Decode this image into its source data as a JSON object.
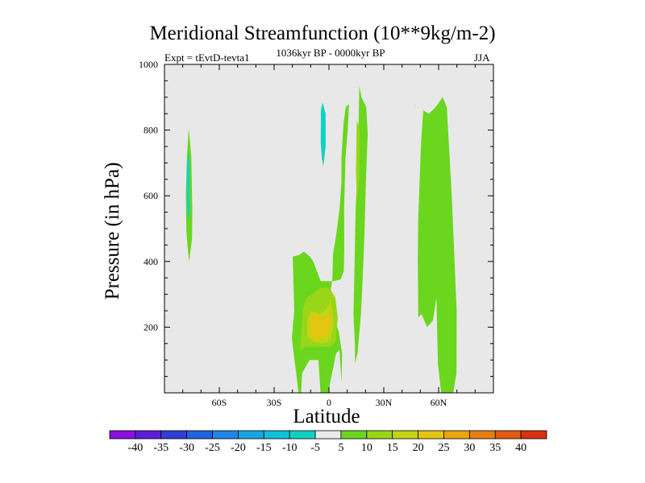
{
  "chart_data": {
    "type": "contour",
    "title": "Meridional Streamfunction (10**9kg/m-2)",
    "experiment_label": "Expt = tEvtD-tevta1",
    "period_label": "1036kyr BP - 0000kyr BP",
    "season_label": "JJA",
    "xlabel": "Latitude",
    "ylabel": "Pressure (in hPa)",
    "xlim": [
      -90,
      90
    ],
    "ylim": [
      1000,
      0
    ],
    "x_ticks": [
      {
        "value": -60,
        "label": "60S"
      },
      {
        "value": -30,
        "label": "30S"
      },
      {
        "value": 0,
        "label": "0"
      },
      {
        "value": 30,
        "label": "30N"
      },
      {
        "value": 60,
        "label": "60N"
      }
    ],
    "y_ticks": [
      {
        "value": 200,
        "label": "200"
      },
      {
        "value": 400,
        "label": "400"
      },
      {
        "value": 600,
        "label": "600"
      },
      {
        "value": 800,
        "label": "800"
      },
      {
        "value": 1000,
        "label": "1000"
      }
    ],
    "colorbar": {
      "labels": [
        "-40",
        "-35",
        "-30",
        "-25",
        "-20",
        "-15",
        "-10",
        "-5",
        "5",
        "10",
        "15",
        "20",
        "25",
        "30",
        "35",
        "40"
      ],
      "colors": [
        "#8a0fe0",
        "#5a1ed8",
        "#2d3fd4",
        "#1f63e0",
        "#1f86e6",
        "#17a3e2",
        "#12bfd8",
        "#10d2c4",
        "#ebebeb",
        "#6ad61e",
        "#98d617",
        "#c2d414",
        "#e4c511",
        "#e9a512",
        "#e47f12",
        "#e05a12",
        "#d8310f"
      ]
    },
    "fields": [
      {
        "level": "5",
        "lat": [
          -76.5,
          -74.9,
          -74.8,
          -75.3,
          -76.7,
          -77.7,
          -78.3,
          -78.0,
          -77.1
        ],
        "p": [
          400,
          470,
          560,
          720,
          805,
          720,
          600,
          490,
          430
        ]
      },
      {
        "level": "-5",
        "lat": [
          -77.0,
          -76.2,
          -76.2,
          -77.0,
          -77.7,
          -77.7
        ],
        "p": [
          520,
          560,
          690,
          740,
          690,
          570
        ]
      },
      {
        "level": "-5",
        "lat": [
          -3.1,
          -1.8,
          -1.8,
          -3.5,
          -4.4,
          -4.5,
          -3.8
        ],
        "p": [
          690,
          750,
          850,
          885,
          860,
          760,
          710
        ]
      },
      {
        "level": "5",
        "lat": [
          -16.6,
          -15.2,
          -14.7,
          -10.6,
          -5.8,
          -4.6,
          -0.4,
          3.9,
          5.8,
          6.9,
          7.2,
          5.2,
          1.7,
          0.2,
          1.9,
          2.2,
          4.2,
          5.8,
          6.8,
          6.9,
          8.0,
          9.2,
          11.0,
          10.3,
          9.1,
          8.3,
          8.4,
          8.1,
          6.3,
          2.7,
          -4.5,
          -8.6,
          -10.4,
          -13.8,
          -16.1,
          -19.8,
          -19.0,
          -20.3
        ],
        "p": [
          0,
          0,
          60,
          100,
          100,
          0,
          0,
          120,
          130,
          30,
          120,
          190,
          240,
          280,
          350,
          420,
          490,
          560,
          640,
          720,
          820,
          870,
          880,
          800,
          720,
          560,
          440,
          370,
          345,
          340,
          340,
          400,
          415,
          430,
          420,
          415,
          250,
          165
        ]
      },
      {
        "level": "10",
        "lat": [
          -15.9,
          -12.8,
          -10.4,
          -6.3,
          -3.6,
          0.9,
          3.8,
          4.8,
          3.5,
          0.2,
          -4.5,
          -9.4,
          -12.2,
          -14.2,
          -14.8
        ],
        "p": [
          130,
          140,
          140,
          140,
          140,
          140,
          155,
          230,
          290,
          320,
          320,
          300,
          290,
          260,
          210
        ]
      },
      {
        "level": "15",
        "lat": [
          -12.0,
          -8.1,
          -3.4,
          0.7,
          2.6,
          1.2,
          -2.0,
          -5.4,
          -9.7,
          -12.1
        ],
        "p": [
          170,
          155,
          150,
          160,
          210,
          280,
          250,
          240,
          250,
          220
        ]
      },
      {
        "level": "20",
        "lat": [
          -10.3,
          -7.8,
          -5.0,
          -1.3,
          1.0,
          0.1,
          -2.2,
          -4.0,
          -7.5,
          -9.9
        ],
        "p": [
          170,
          160,
          170,
          175,
          210,
          245,
          230,
          225,
          245,
          225
        ]
      },
      {
        "level": "5",
        "lat": [
          14.3,
          15.6,
          17.5,
          18.4,
          19.4,
          20.2,
          21.2,
          20.4,
          17.8,
          16.6,
          16.4,
          15.8,
          14.6,
          14.0,
          13.4,
          14.2
        ],
        "p": [
          90,
          120,
          240,
          340,
          480,
          640,
          790,
          870,
          900,
          935,
          870,
          700,
          560,
          380,
          240,
          150
        ]
      },
      {
        "level": "10",
        "lat": [
          15.2,
          16.6,
          16.9,
          15.2,
          14.8
        ],
        "p": [
          580,
          650,
          800,
          830,
          680
        ]
      },
      {
        "level": "5",
        "lat": [
          48.9,
          50.7,
          53.7,
          56.9,
          58.8,
          59.6,
          61.4,
          61.7,
          65.2,
          68.0,
          69.8,
          69.9,
          67.3,
          64.5,
          62.2,
          58.4,
          54.7,
          51.6,
          50.4,
          48.8,
          48.6
        ],
        "p": [
          230,
          240,
          200,
          220,
          290,
          90,
          0,
          0,
          0,
          0,
          60,
          250,
          590,
          870,
          900,
          870,
          850,
          860,
          760,
          520,
          400
        ]
      },
      {
        "level": "5",
        "lat": [
          47.6,
          47.2,
          47.4
        ],
        "p": [
          860,
          880,
          875
        ]
      }
    ]
  }
}
